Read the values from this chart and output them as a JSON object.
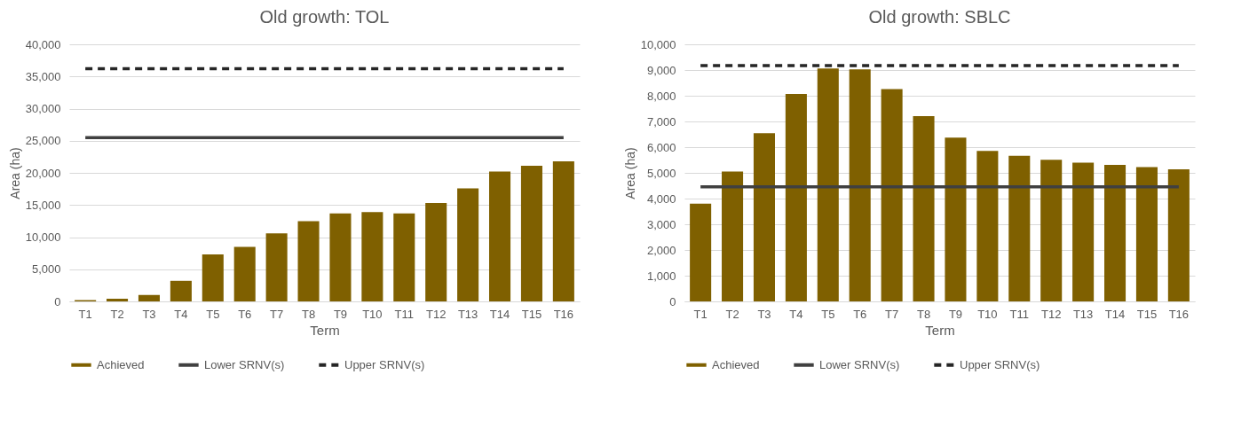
{
  "chart_data": [
    {
      "type": "bar",
      "title": "Old growth:  TOL",
      "xlabel": "Term",
      "ylabel": "Area (ha)",
      "categories": [
        "T1",
        "T2",
        "T3",
        "T4",
        "T5",
        "T6",
        "T7",
        "T8",
        "T9",
        "T10",
        "T11",
        "T12",
        "T13",
        "T14",
        "T15",
        "T16"
      ],
      "series": [
        {
          "name": "Achieved",
          "color": "#7f6000",
          "values": [
            200,
            400,
            1000,
            3200,
            7300,
            8500,
            10600,
            12500,
            13700,
            13900,
            13700,
            15300,
            17600,
            20200,
            21100,
            21800
          ]
        },
        {
          "name": "Lower SRNV(s)",
          "type": "line",
          "line_style": "solid",
          "color": "#404040",
          "values": [
            25500,
            25500,
            25500,
            25500,
            25500,
            25500,
            25500,
            25500,
            25500,
            25500,
            25500,
            25500,
            25500,
            25500,
            25500,
            25500
          ]
        },
        {
          "name": "Upper SRNV(s)",
          "type": "line",
          "line_style": "dashed",
          "color": "#262626",
          "values": [
            36200,
            36200,
            36200,
            36200,
            36200,
            36200,
            36200,
            36200,
            36200,
            36200,
            36200,
            36200,
            36200,
            36200,
            36200,
            36200
          ]
        }
      ],
      "ylim": [
        0,
        40000
      ],
      "yticks": [
        {
          "value": 0,
          "label": "0"
        },
        {
          "value": 5000,
          "label": "5,000"
        },
        {
          "value": 10000,
          "label": "10,000"
        },
        {
          "value": 15000,
          "label": "15,000"
        },
        {
          "value": 20000,
          "label": "20,000"
        },
        {
          "value": 25000,
          "label": "25,000"
        },
        {
          "value": 30000,
          "label": "30,000"
        },
        {
          "value": 35000,
          "label": "35,000"
        },
        {
          "value": 40000,
          "label": "40,000"
        }
      ],
      "grid": "y",
      "legend": "bottom"
    },
    {
      "type": "bar",
      "title": "Old growth:  SBLC",
      "xlabel": "Term",
      "ylabel": "Area (ha)",
      "categories": [
        "T1",
        "T2",
        "T3",
        "T4",
        "T5",
        "T6",
        "T7",
        "T8",
        "T9",
        "T10",
        "T11",
        "T12",
        "T13",
        "T14",
        "T15",
        "T16"
      ],
      "series": [
        {
          "name": "Achieved",
          "color": "#7f6000",
          "values": [
            3800,
            5050,
            6540,
            8070,
            9060,
            9030,
            8260,
            7210,
            6370,
            5850,
            5660,
            5510,
            5400,
            5310,
            5220,
            5140
          ]
        },
        {
          "name": "Lower SRNV(s)",
          "type": "line",
          "line_style": "solid",
          "color": "#404040",
          "values": [
            4460,
            4460,
            4460,
            4460,
            4460,
            4460,
            4460,
            4460,
            4460,
            4460,
            4460,
            4460,
            4460,
            4460,
            4460,
            4460
          ]
        },
        {
          "name": "Upper SRNV(s)",
          "type": "line",
          "line_style": "dashed",
          "color": "#262626",
          "values": [
            9170,
            9170,
            9170,
            9170,
            9170,
            9170,
            9170,
            9170,
            9170,
            9170,
            9170,
            9170,
            9170,
            9170,
            9170,
            9170
          ]
        }
      ],
      "ylim": [
        0,
        10000
      ],
      "yticks": [
        {
          "value": 0,
          "label": "0"
        },
        {
          "value": 1000,
          "label": "1,000"
        },
        {
          "value": 2000,
          "label": "2,000"
        },
        {
          "value": 3000,
          "label": "3,000"
        },
        {
          "value": 4000,
          "label": "4,000"
        },
        {
          "value": 5000,
          "label": "5,000"
        },
        {
          "value": 6000,
          "label": "6,000"
        },
        {
          "value": 7000,
          "label": "7,000"
        },
        {
          "value": 8000,
          "label": "8,000"
        },
        {
          "value": 9000,
          "label": "9,000"
        },
        {
          "value": 10000,
          "label": "10,000"
        }
      ],
      "grid": "y",
      "legend": "bottom"
    }
  ]
}
